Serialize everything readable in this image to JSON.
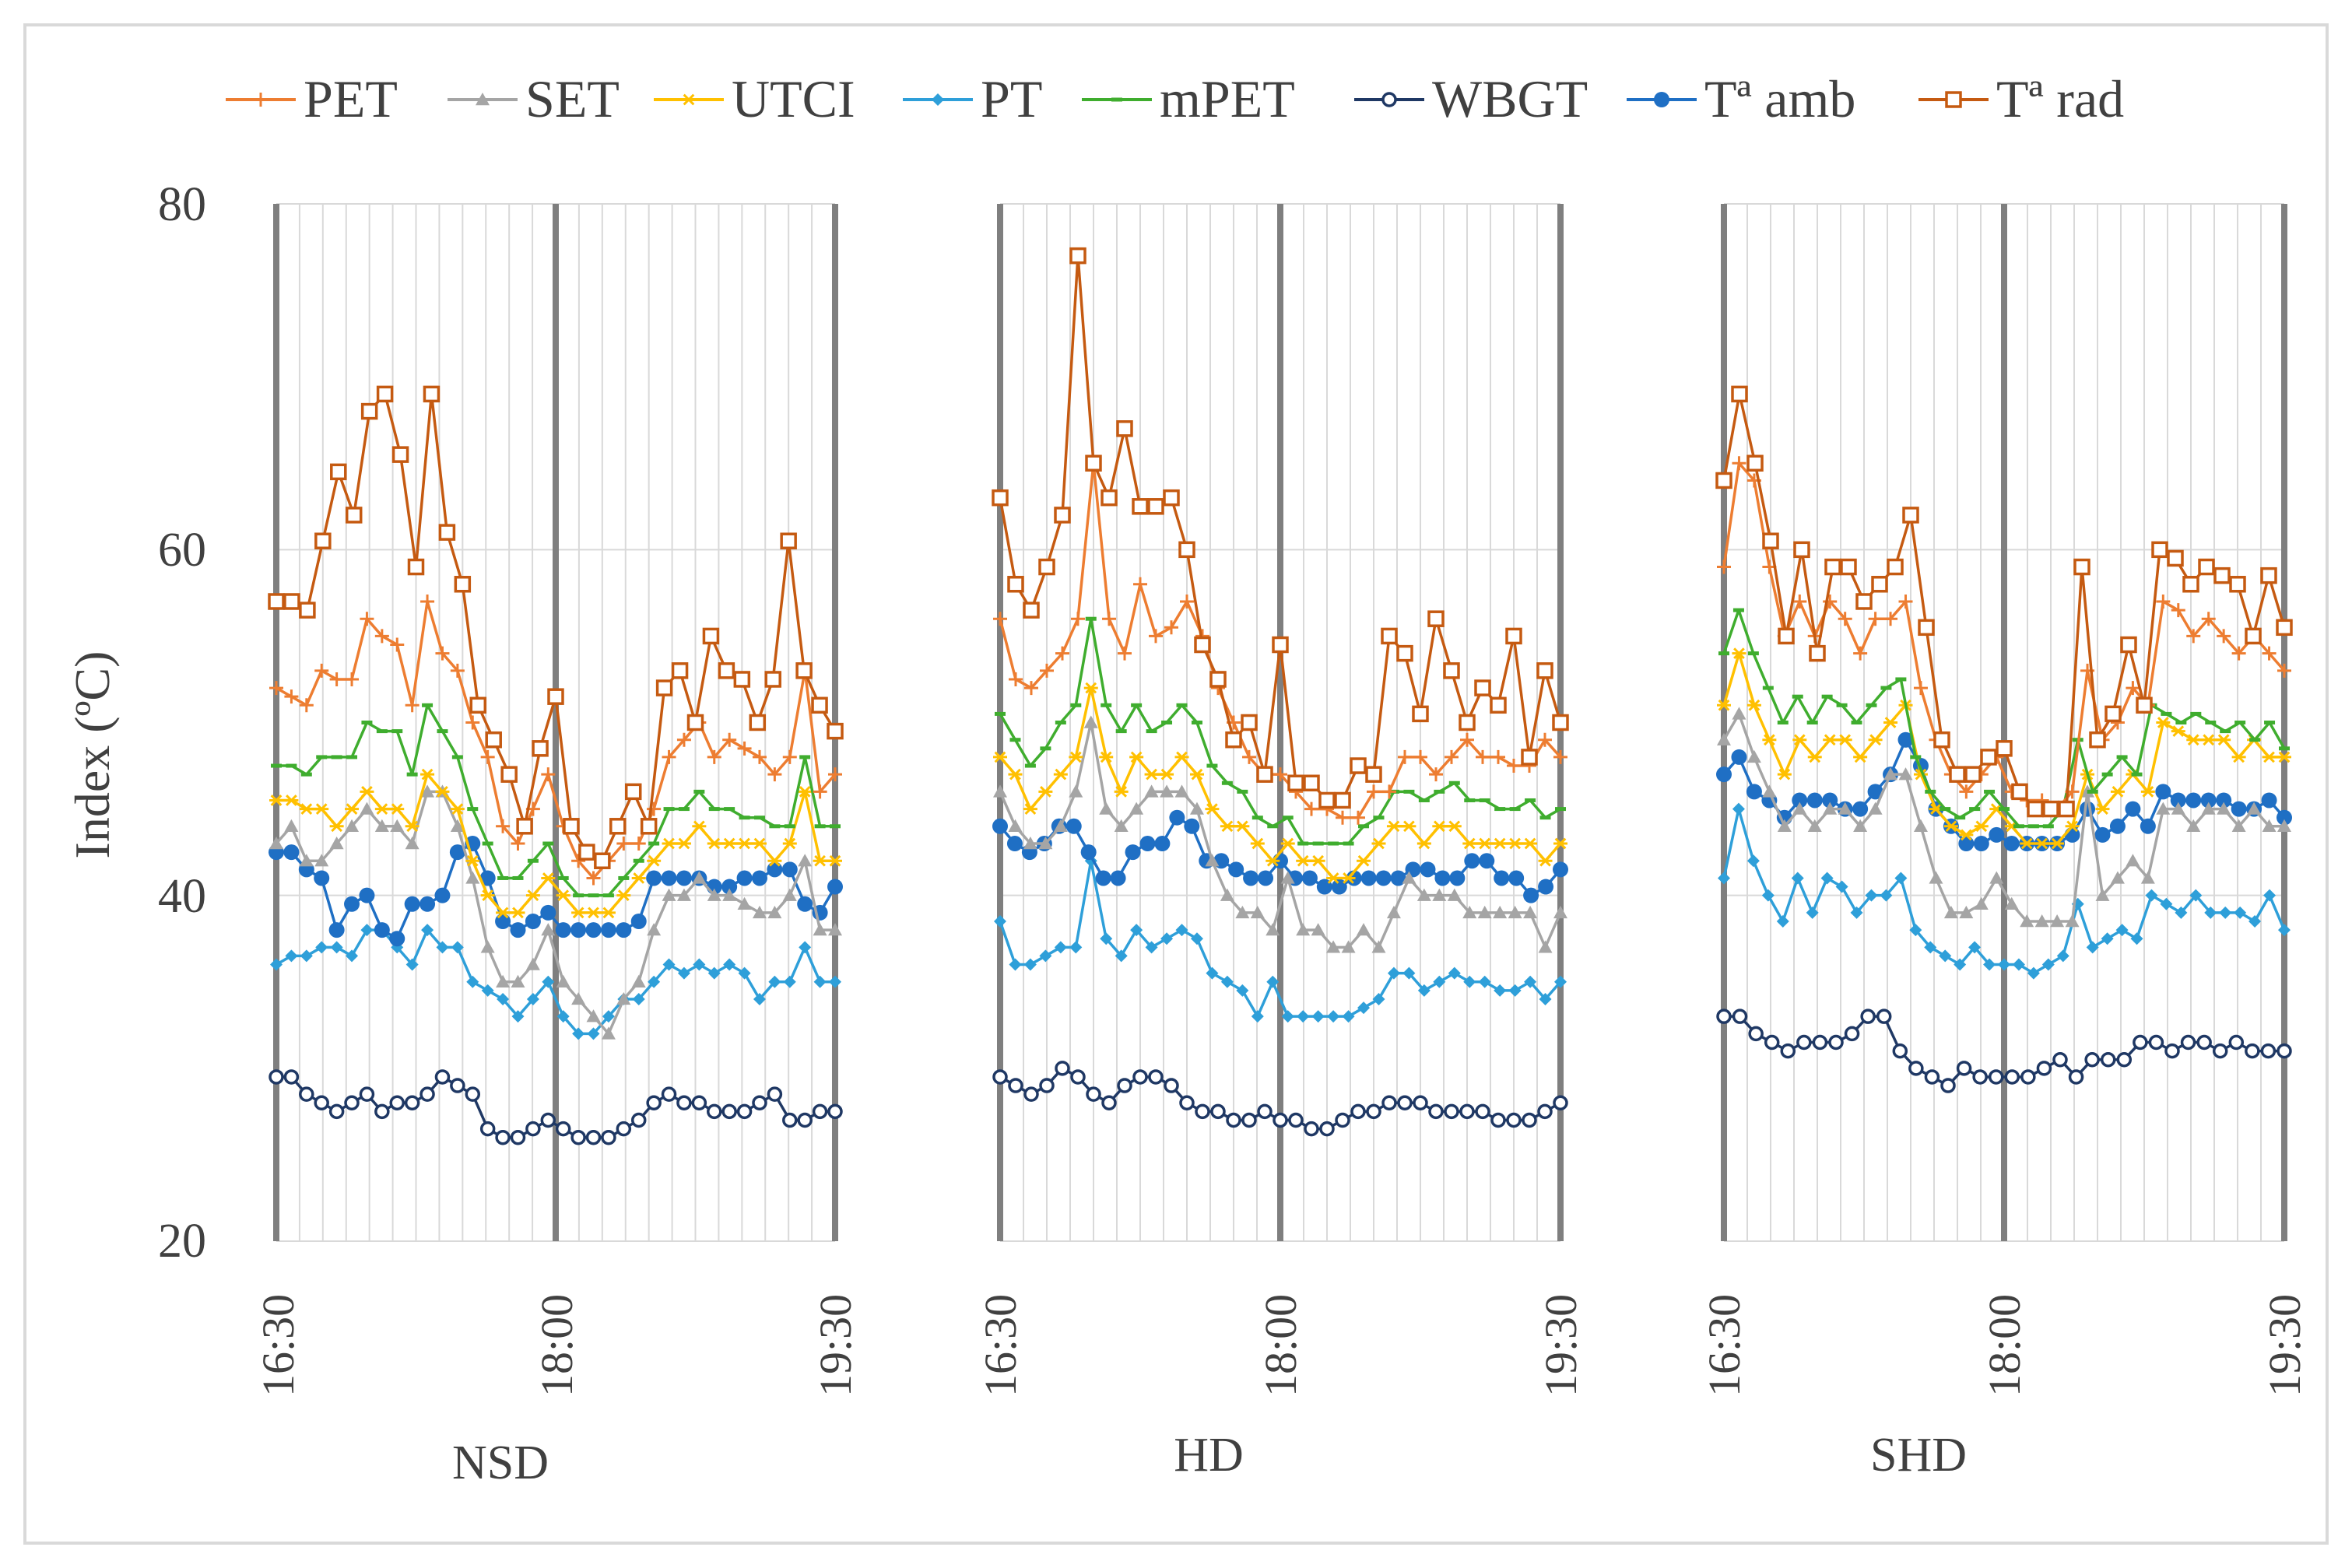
{
  "chart_data": {
    "type": "line",
    "ylabel": "Index (ºC)",
    "ylim": [
      20,
      80
    ],
    "yticks": [
      20,
      40,
      60,
      80
    ],
    "grid": true,
    "legend": {
      "position": "top",
      "entries": [
        {
          "name": "PET",
          "color": "#ed7d31",
          "marker": "plus"
        },
        {
          "name": "SET",
          "color": "#a5a5a5",
          "marker": "triangle"
        },
        {
          "name": "UTCI",
          "color": "#ffc000",
          "marker": "star"
        },
        {
          "name": "PT",
          "color": "#2e9fd9",
          "marker": "diamond"
        },
        {
          "name": "mPET",
          "color": "#3fad2e",
          "marker": "dash"
        },
        {
          "name": "WBGT",
          "color": "#1f3864",
          "marker": "open-circle"
        },
        {
          "name": "Tª amb",
          "color": "#1f6fc4",
          "marker": "filled-circle"
        },
        {
          "name": "Tª rad",
          "color": "#c55a11",
          "marker": "open-square"
        }
      ]
    },
    "x_tick_labels": [
      "16:30",
      "18:00",
      "19:30"
    ],
    "panels": [
      {
        "name": "NSD",
        "series": {
          "PET": [
            52,
            51.5,
            51,
            53,
            52.5,
            52.5,
            56,
            55,
            54.5,
            51,
            57,
            54,
            53,
            50,
            48,
            44,
            43,
            45,
            47,
            44,
            42,
            41,
            42,
            43,
            43,
            45,
            48,
            49,
            50,
            48,
            49,
            48.5,
            48,
            47,
            48,
            53,
            46,
            47
          ],
          "SET": [
            43,
            44,
            42,
            42,
            43,
            44,
            45,
            44,
            44,
            43,
            46,
            46,
            44,
            41,
            37,
            35,
            35,
            36,
            38,
            35,
            34,
            33,
            32,
            34,
            35,
            38,
            40,
            40,
            41,
            40,
            40,
            39.5,
            39,
            39,
            40,
            42,
            38,
            38
          ],
          "UTCI": [
            45.5,
            45.5,
            45,
            45,
            44,
            45,
            46,
            45,
            45,
            44,
            47,
            46,
            45,
            42,
            40,
            39,
            39,
            40,
            41,
            40,
            39,
            39,
            39,
            40,
            41,
            42,
            43,
            43,
            44,
            43,
            43,
            43,
            43,
            42,
            43,
            46,
            42,
            42
          ],
          "PT": [
            36,
            36.5,
            36.5,
            37,
            37,
            36.5,
            38,
            38,
            37,
            36,
            38,
            37,
            37,
            35,
            34.5,
            34,
            33,
            34,
            35,
            33,
            32,
            32,
            33,
            34,
            34,
            35,
            36,
            35.5,
            36,
            35.5,
            36,
            35.5,
            34,
            35,
            35,
            37,
            35,
            35
          ],
          "mPET": [
            47.5,
            47.5,
            47,
            48,
            48,
            48,
            50,
            49.5,
            49.5,
            47,
            51,
            49.5,
            48,
            45,
            43,
            41,
            41,
            42,
            43,
            41,
            40,
            40,
            40,
            41,
            42,
            43,
            45,
            45,
            46,
            45,
            45,
            44.5,
            44.5,
            44,
            44,
            48,
            44,
            44
          ],
          "WBGT": [
            29.5,
            29.5,
            28.5,
            28,
            27.5,
            28,
            28.5,
            27.5,
            28,
            28,
            28.5,
            29.5,
            29,
            28.5,
            26.5,
            26,
            26,
            26.5,
            27,
            26.5,
            26,
            26,
            26,
            26.5,
            27,
            28,
            28.5,
            28,
            28,
            27.5,
            27.5,
            27.5,
            28,
            28.5,
            27,
            27,
            27.5,
            27.5
          ],
          "Tª amb": [
            42.5,
            42.5,
            41.5,
            41,
            38,
            39.5,
            40,
            38,
            37.5,
            39.5,
            39.5,
            40,
            42.5,
            43,
            41,
            38.5,
            38,
            38.5,
            39,
            38,
            38,
            38,
            38,
            38,
            38.5,
            41,
            41,
            41,
            41,
            40.5,
            40.5,
            41,
            41,
            41.5,
            41.5,
            39.5,
            39,
            40.5
          ],
          "Tª rad": [
            57,
            57,
            56.5,
            60.5,
            64.5,
            62,
            68,
            69,
            65.5,
            59,
            69,
            61,
            58,
            51,
            49,
            47,
            44,
            48.5,
            51.5,
            44,
            42.5,
            42,
            44,
            46,
            44,
            52,
            53,
            50,
            55,
            53,
            52.5,
            50,
            52.5,
            60.5,
            53,
            51,
            49.5
          ]
        }
      },
      {
        "name": "HD",
        "series": {
          "PET": [
            56,
            52.5,
            52,
            53,
            54,
            56,
            65,
            56,
            54,
            58,
            55,
            55.5,
            57,
            55,
            52,
            50,
            48,
            47,
            47,
            46,
            45,
            45,
            44.5,
            44.5,
            46,
            46,
            48,
            48,
            47,
            48,
            49,
            48,
            48,
            47.5,
            47.5,
            49,
            48
          ],
          "SET": [
            46,
            44,
            43,
            43,
            44,
            46,
            50,
            45,
            44,
            45,
            46,
            46,
            46,
            45,
            42,
            40,
            39,
            39,
            38,
            41,
            38,
            38,
            37,
            37,
            38,
            37,
            39,
            41,
            40,
            40,
            40,
            39,
            39,
            39,
            39,
            39,
            37,
            39
          ],
          "UTCI": [
            48,
            47,
            45,
            46,
            47,
            48,
            52,
            48,
            46,
            48,
            47,
            47,
            48,
            47,
            45,
            44,
            44,
            43,
            42,
            43,
            42,
            42,
            41,
            41,
            42,
            43,
            44,
            44,
            43,
            44,
            44,
            43,
            43,
            43,
            43,
            43,
            42,
            43
          ],
          "PT": [
            38.5,
            36,
            36,
            36.5,
            37,
            37,
            42,
            37.5,
            36.5,
            38,
            37,
            37.5,
            38,
            37.5,
            35.5,
            35,
            34.5,
            33,
            35,
            33,
            33,
            33,
            33,
            33,
            33.5,
            34,
            35.5,
            35.5,
            34.5,
            35,
            35.5,
            35,
            35,
            34.5,
            34.5,
            35,
            34,
            35
          ],
          "mPET": [
            50.5,
            49,
            47.5,
            48.5,
            50,
            51,
            56,
            51,
            49.5,
            51,
            49.5,
            50,
            51,
            50,
            47.5,
            46.5,
            46,
            44.5,
            44,
            44.5,
            43,
            43,
            43,
            43,
            44,
            44.5,
            46,
            46,
            45.5,
            46,
            46.5,
            45.5,
            45.5,
            45,
            45,
            45.5,
            44.5,
            45
          ],
          "WBGT": [
            29.5,
            29,
            28.5,
            29,
            30,
            29.5,
            28.5,
            28,
            29,
            29.5,
            29.5,
            29,
            28,
            27.5,
            27.5,
            27,
            27,
            27.5,
            27,
            27,
            26.5,
            26.5,
            27,
            27.5,
            27.5,
            28,
            28,
            28,
            27.5,
            27.5,
            27.5,
            27.5,
            27,
            27,
            27,
            27.5,
            28
          ],
          "Tª amb": [
            44,
            43,
            42.5,
            43,
            44,
            44,
            42.5,
            41,
            41,
            42.5,
            43,
            43,
            44.5,
            44,
            42,
            42,
            41.5,
            41,
            41,
            42,
            41,
            41,
            40.5,
            40.5,
            41,
            41,
            41,
            41,
            41.5,
            41.5,
            41,
            41,
            42,
            42,
            41,
            41,
            40,
            40.5,
            41.5
          ],
          "Tª rad": [
            63,
            58,
            56.5,
            59,
            62,
            77,
            65,
            63,
            67,
            62.5,
            62.5,
            63,
            60,
            54.5,
            52.5,
            49,
            50,
            47,
            54.5,
            46.5,
            46.5,
            45.5,
            45.5,
            47.5,
            47,
            55,
            54,
            50.5,
            56,
            53,
            50,
            52,
            51,
            55,
            48,
            53,
            50
          ]
        }
      },
      {
        "name": "SHD",
        "series": {
          "PET": [
            59,
            65,
            64,
            59,
            55,
            57,
            55,
            57,
            56,
            54,
            56,
            56,
            57,
            52,
            49,
            47,
            46,
            47,
            48,
            46,
            45.5,
            45.5,
            45,
            46,
            53,
            49,
            50,
            52,
            51,
            57,
            56.5,
            55,
            56,
            55,
            54,
            55,
            54,
            53
          ],
          "SET": [
            49,
            50.5,
            48,
            46,
            44,
            45,
            44,
            45,
            45,
            44,
            45,
            47,
            47,
            44,
            41,
            39,
            39,
            39.5,
            41,
            39.5,
            38.5,
            38.5,
            38.5,
            38.5,
            46,
            40,
            41,
            42,
            41,
            45,
            45,
            44,
            45,
            45,
            44,
            45,
            44,
            44
          ],
          "UTCI": [
            51,
            54,
            51,
            49,
            47,
            49,
            48,
            49,
            49,
            48,
            49,
            50,
            51,
            47,
            45,
            44,
            43.5,
            44,
            45,
            44,
            43,
            43,
            43,
            44,
            47,
            45,
            46,
            47,
            46,
            50,
            49.5,
            49,
            49,
            49,
            48,
            49,
            48,
            48
          ],
          "PT": [
            41,
            45,
            42,
            40,
            38.5,
            41,
            39,
            41,
            40.5,
            39,
            40,
            40,
            41,
            38,
            37,
            36.5,
            36,
            37,
            36,
            36,
            36,
            35.5,
            36,
            36.5,
            39.5,
            37,
            37.5,
            38,
            37.5,
            40,
            39.5,
            39,
            40,
            39,
            39,
            39,
            38.5,
            40,
            38
          ],
          "mPET": [
            54,
            56.5,
            54,
            52,
            50,
            51.5,
            50,
            51.5,
            51,
            50,
            51,
            52,
            52.5,
            48,
            46,
            45,
            44.5,
            45,
            46,
            45,
            44,
            44,
            44,
            45,
            49,
            46,
            47,
            48,
            47,
            51,
            50.5,
            50,
            50.5,
            50,
            49.5,
            50,
            49,
            50,
            48.5
          ],
          "WBGT": [
            33,
            33,
            32,
            31.5,
            31,
            31.5,
            31.5,
            31.5,
            32,
            33,
            33,
            31,
            30,
            29.5,
            29,
            30,
            29.5,
            29.5,
            29.5,
            29.5,
            30,
            30.5,
            29.5,
            30.5,
            30.5,
            30.5,
            31.5,
            31.5,
            31,
            31.5,
            31.5,
            31,
            31.5,
            31,
            31,
            31
          ],
          "Tª amb": [
            47,
            48,
            46,
            45.5,
            44.5,
            45.5,
            45.5,
            45.5,
            45,
            45,
            46,
            47,
            49,
            47.5,
            45,
            44,
            43,
            43,
            43.5,
            43,
            43,
            43,
            43,
            43.5,
            45,
            43.5,
            44,
            45,
            44,
            46,
            45.5,
            45.5,
            45.5,
            45.5,
            45,
            45,
            45.5,
            44.5
          ],
          "Tª rad": [
            64,
            69,
            65,
            60.5,
            55,
            60,
            54,
            59,
            59,
            57,
            58,
            59,
            62,
            55.5,
            49,
            47,
            47,
            48,
            48.5,
            46,
            45,
            45,
            45,
            59,
            49,
            50.5,
            54.5,
            51,
            60,
            59.5,
            58,
            59,
            58.5,
            58,
            55,
            58.5,
            55.5
          ]
        }
      }
    ]
  }
}
